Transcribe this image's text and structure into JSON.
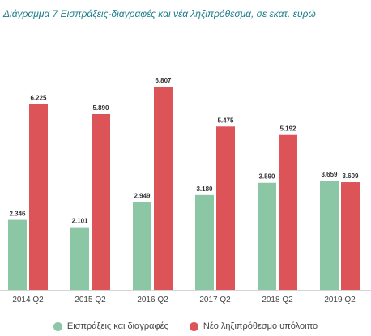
{
  "chart_data": {
    "type": "bar",
    "title": "Διάγραμμα 7 Εισπράξεις-διαγραφές και νέα ληξιπρόθεσμα, σε εκατ. ευρώ",
    "categories": [
      "2014 Q2",
      "2015 Q2",
      "2016 Q2",
      "2017 Q2",
      "2018 Q2",
      "2019 Q2"
    ],
    "series": [
      {
        "name": "Εισπράξεις και διαγραφές",
        "color": "#8cc7a5",
        "values": [
          2.346,
          2.101,
          2.949,
          3.18,
          3.59,
          3.659
        ],
        "labels": [
          "2.346",
          "2.101",
          "2.949",
          "3.180",
          "3.590",
          "3.659"
        ]
      },
      {
        "name": "Νέο ληξιπρόθεσμο υπόλοιπο",
        "color": "#dc5358",
        "values": [
          6.225,
          5.89,
          6.807,
          5.475,
          5.192,
          3.609
        ],
        "labels": [
          "6.225",
          "5.890",
          "6.807",
          "5.475",
          "5.192",
          "3.609"
        ]
      }
    ],
    "ylim": [
      0,
      7.6
    ],
    "grid": false,
    "legend_position": "bottom"
  }
}
